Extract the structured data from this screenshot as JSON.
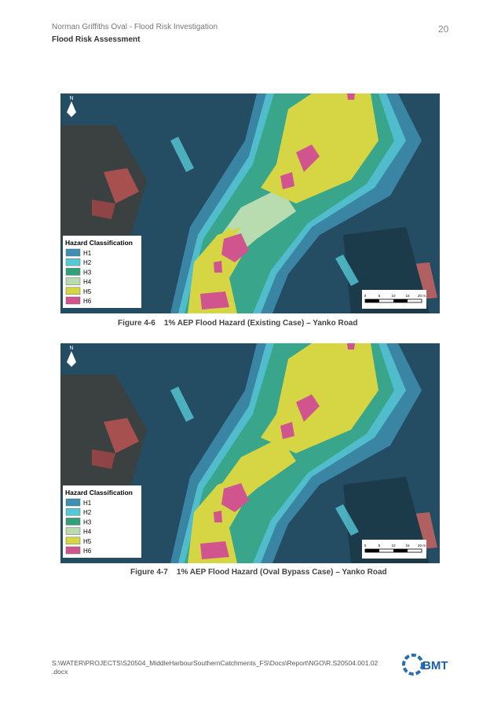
{
  "header": {
    "title": "Norman Griffiths Oval - Flood Risk Investigation",
    "subtitle": "Flood Risk Assessment",
    "page": "20"
  },
  "figures": [
    {
      "number": "Figure 4-6",
      "caption": "1% AEP Flood Hazard (Existing Case) – Yanko Road",
      "north": "N",
      "legend": {
        "title": "Hazard Classification",
        "items": [
          {
            "label": "H1",
            "color": "#3f8fb0"
          },
          {
            "label": "H2",
            "color": "#56c9d6"
          },
          {
            "label": "H3",
            "color": "#33a07c"
          },
          {
            "label": "H4",
            "color": "#b8dcb0"
          },
          {
            "label": "H5",
            "color": "#d6d644"
          },
          {
            "label": "H6",
            "color": "#d0558f"
          }
        ]
      },
      "scale": [
        "0",
        "5",
        "10",
        "15",
        "20 m"
      ]
    },
    {
      "number": "Figure 4-7",
      "caption": "1% AEP Flood Hazard (Oval Bypass Case) – Yanko Road",
      "north": "N",
      "legend": {
        "title": "Hazard Classification",
        "items": [
          {
            "label": "H1",
            "color": "#3f8fb0"
          },
          {
            "label": "H2",
            "color": "#56c9d6"
          },
          {
            "label": "H3",
            "color": "#33a07c"
          },
          {
            "label": "H4",
            "color": "#b8dcb0"
          },
          {
            "label": "H5",
            "color": "#d6d644"
          },
          {
            "label": "H6",
            "color": "#d0558f"
          }
        ]
      },
      "scale": [
        "0",
        "5",
        "10",
        "15",
        "20 m"
      ]
    }
  ],
  "footer": {
    "path": [
      "S:\\WATER\\PROJECTS\\S20504_MiddleHarbourSouthernCatchments_FS\\Docs\\Report\\NGO\\R.S20504.001.02",
      ".docx"
    ],
    "logo": "BMT"
  }
}
